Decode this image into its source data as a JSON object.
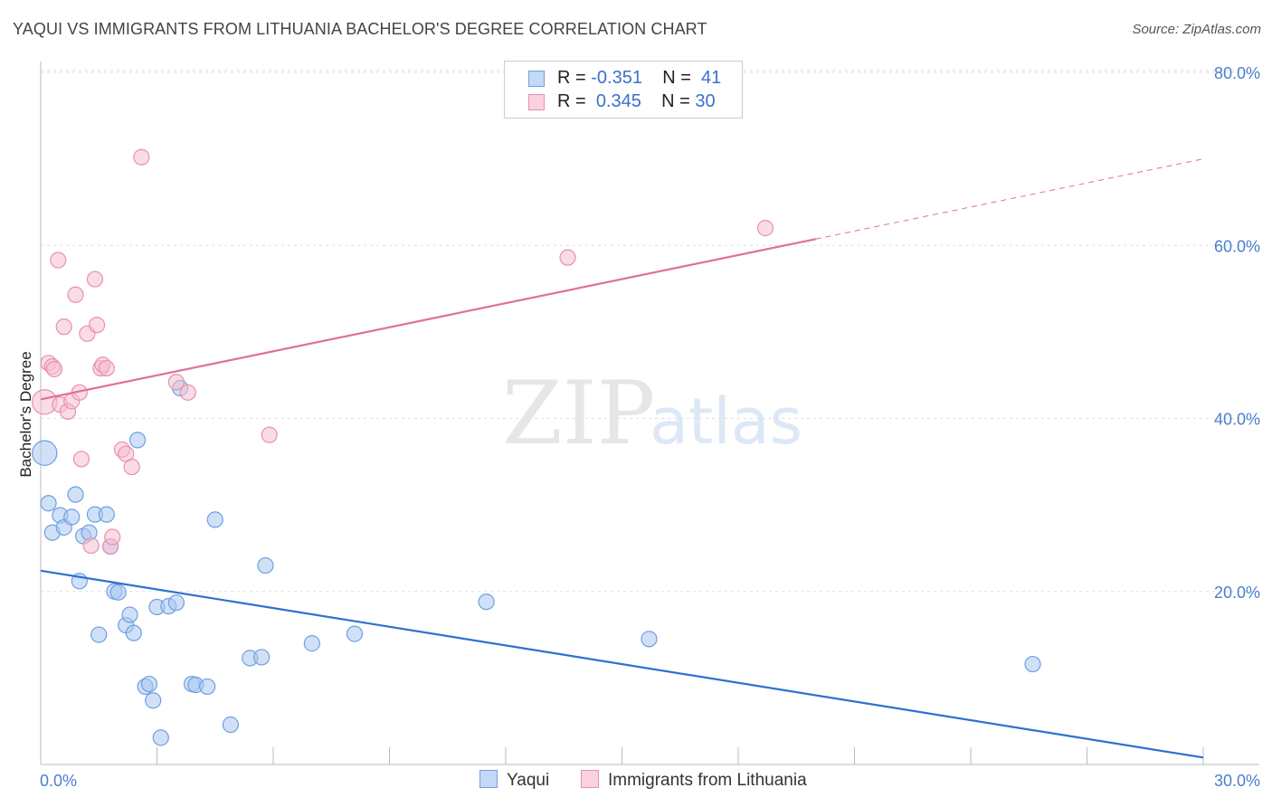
{
  "header": {
    "title": "YAQUI VS IMMIGRANTS FROM LITHUANIA BACHELOR'S DEGREE CORRELATION CHART",
    "source": "Source: ZipAtlas.com"
  },
  "watermark": {
    "zip": "ZIP",
    "atlas": "atlas"
  },
  "legend": {
    "rows": [
      {
        "r_label": "R = ",
        "r_value": "-0.351",
        "n_label": "N = ",
        "n_value": "41"
      },
      {
        "r_label": "R = ",
        "r_value": "0.345",
        "n_label": "N = ",
        "n_value": "30"
      }
    ]
  },
  "colors": {
    "yaqui_fill": "#a9c8f0",
    "yaqui_stroke": "#6f9fe0",
    "yaqui_line": "#2f6fd0",
    "lith_fill": "#f6c0d0",
    "lith_stroke": "#e890ac",
    "lith_line": "#e0709a",
    "tick_text": "#4a7fd0"
  },
  "chart_data": {
    "type": "scatter",
    "title": "YAQUI VS IMMIGRANTS FROM LITHUANIA BACHELOR'S DEGREE CORRELATION CHART",
    "xlabel": "",
    "ylabel": "Bachelor's Degree",
    "xlim": [
      0,
      30
    ],
    "ylim": [
      0,
      80
    ],
    "x_ticks": [
      "0.0%",
      "30.0%"
    ],
    "y_ticks": [
      "20.0%",
      "40.0%",
      "60.0%",
      "80.0%"
    ],
    "y_tick_values": [
      20,
      40,
      60,
      80
    ],
    "grid": true,
    "legend_placement": "top-center",
    "series": [
      {
        "name": "Yaqui",
        "r": -0.351,
        "n": 41,
        "trend": {
          "x": [
            0,
            30
          ],
          "y": [
            22.4,
            0.8
          ],
          "dashed_from": null
        },
        "points": [
          [
            0.1,
            36,
            1.6
          ],
          [
            0.2,
            30.2,
            1
          ],
          [
            0.3,
            26.8,
            1
          ],
          [
            0.5,
            28.8,
            1
          ],
          [
            0.6,
            27.4,
            1
          ],
          [
            0.8,
            28.6,
            1
          ],
          [
            0.9,
            31.2,
            1
          ],
          [
            1.0,
            21.2,
            1
          ],
          [
            1.1,
            26.4,
            1
          ],
          [
            1.25,
            26.8,
            1
          ],
          [
            1.4,
            28.9,
            1
          ],
          [
            1.5,
            15.0,
            1
          ],
          [
            1.7,
            28.9,
            1
          ],
          [
            1.8,
            25.2,
            1
          ],
          [
            1.9,
            20.0,
            1
          ],
          [
            2.0,
            19.9,
            1
          ],
          [
            2.2,
            16.1,
            1
          ],
          [
            2.3,
            17.3,
            1
          ],
          [
            2.4,
            15.2,
            1
          ],
          [
            2.5,
            37.5,
            1
          ],
          [
            2.7,
            9.0,
            1
          ],
          [
            2.8,
            9.3,
            1
          ],
          [
            2.9,
            7.4,
            1
          ],
          [
            3.0,
            18.2,
            1
          ],
          [
            3.1,
            3.1,
            1
          ],
          [
            3.3,
            18.3,
            1
          ],
          [
            3.5,
            18.7,
            1
          ],
          [
            3.6,
            43.5,
            1
          ],
          [
            3.9,
            9.3,
            1
          ],
          [
            4.0,
            9.2,
            1
          ],
          [
            4.3,
            9.0,
            1
          ],
          [
            4.5,
            28.3,
            1
          ],
          [
            4.9,
            4.6,
            1
          ],
          [
            5.4,
            12.3,
            1
          ],
          [
            5.7,
            12.4,
            1
          ],
          [
            5.8,
            23.0,
            1
          ],
          [
            7.0,
            14.0,
            1
          ],
          [
            8.1,
            15.1,
            1
          ],
          [
            11.5,
            18.8,
            1
          ],
          [
            15.7,
            14.5,
            1
          ],
          [
            25.6,
            11.6,
            1
          ]
        ]
      },
      {
        "name": "Immigrants from Lithuania",
        "r": 0.345,
        "n": 30,
        "trend": {
          "x": [
            0,
            30
          ],
          "y": [
            42.2,
            70.0
          ],
          "dashed_from": 20.0
        },
        "points": [
          [
            0.1,
            41.9,
            1.6
          ],
          [
            0.2,
            46.4,
            1
          ],
          [
            0.3,
            46.0,
            1
          ],
          [
            0.35,
            45.7,
            1
          ],
          [
            0.45,
            58.3,
            1
          ],
          [
            0.5,
            41.6,
            1
          ],
          [
            0.6,
            50.6,
            1
          ],
          [
            0.7,
            40.8,
            1
          ],
          [
            0.8,
            42.0,
            1
          ],
          [
            0.9,
            54.3,
            1
          ],
          [
            1.0,
            43.0,
            1
          ],
          [
            1.05,
            35.3,
            1
          ],
          [
            1.2,
            49.8,
            1
          ],
          [
            1.3,
            25.3,
            1
          ],
          [
            1.4,
            56.1,
            1
          ],
          [
            1.45,
            50.8,
            1
          ],
          [
            1.55,
            45.8,
            1
          ],
          [
            1.6,
            46.2,
            1
          ],
          [
            1.7,
            45.8,
            1
          ],
          [
            1.8,
            25.2,
            1
          ],
          [
            1.85,
            26.3,
            1
          ],
          [
            2.1,
            36.4,
            1
          ],
          [
            2.2,
            35.9,
            1
          ],
          [
            2.35,
            34.4,
            1
          ],
          [
            2.6,
            70.2,
            1
          ],
          [
            3.5,
            44.2,
            1
          ],
          [
            3.8,
            43.0,
            1
          ],
          [
            5.9,
            38.1,
            1
          ],
          [
            13.6,
            58.6,
            1
          ],
          [
            18.7,
            62.0,
            1
          ]
        ]
      }
    ]
  }
}
